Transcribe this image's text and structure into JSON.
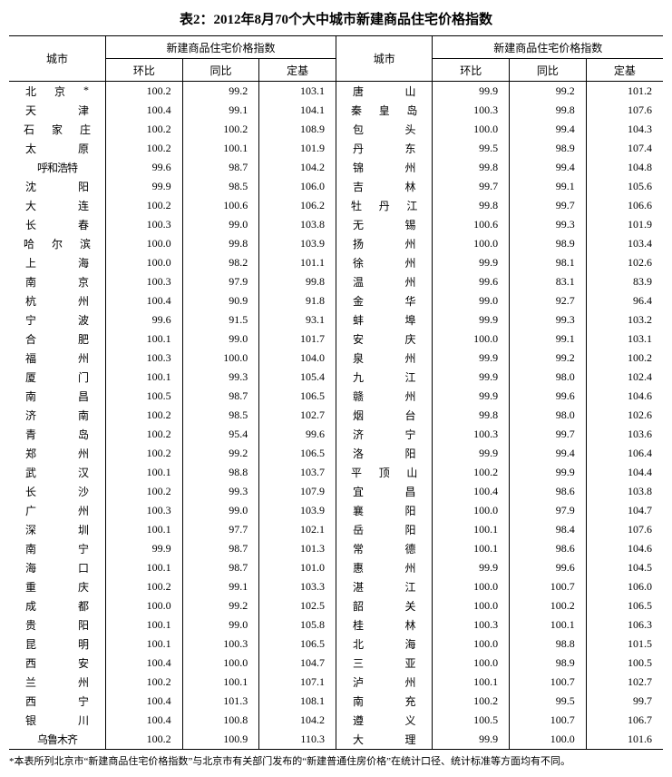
{
  "title": "表2：2012年8月70个大中城市新建商品住宅价格指数",
  "header": {
    "city": "城市",
    "group": "新建商品住宅价格指数",
    "col1": "环比",
    "col2": "同比",
    "col3": "定基"
  },
  "left": [
    {
      "c": "北　京*",
      "v": [
        100.2,
        99.2,
        103.1
      ]
    },
    {
      "c": "天　津",
      "v": [
        100.4,
        99.1,
        104.1
      ]
    },
    {
      "c": "石家庄",
      "v": [
        100.2,
        100.2,
        108.9
      ]
    },
    {
      "c": "太　原",
      "v": [
        100.2,
        100.1,
        101.9
      ]
    },
    {
      "c": "呼和浩特",
      "v": [
        99.6,
        98.7,
        104.2
      ]
    },
    {
      "c": "沈　阳",
      "v": [
        99.9,
        98.5,
        106.0
      ]
    },
    {
      "c": "大　连",
      "v": [
        100.2,
        100.6,
        106.2
      ]
    },
    {
      "c": "长　春",
      "v": [
        100.3,
        99.0,
        103.8
      ]
    },
    {
      "c": "哈尔滨",
      "v": [
        100.0,
        99.8,
        103.9
      ]
    },
    {
      "c": "上　海",
      "v": [
        100.0,
        98.2,
        101.1
      ]
    },
    {
      "c": "南　京",
      "v": [
        100.3,
        97.9,
        99.8
      ]
    },
    {
      "c": "杭　州",
      "v": [
        100.4,
        90.9,
        91.8
      ]
    },
    {
      "c": "宁　波",
      "v": [
        99.6,
        91.5,
        93.1
      ]
    },
    {
      "c": "合　肥",
      "v": [
        100.1,
        99.0,
        101.7
      ]
    },
    {
      "c": "福　州",
      "v": [
        100.3,
        100.0,
        104.0
      ]
    },
    {
      "c": "厦　门",
      "v": [
        100.1,
        99.3,
        105.4
      ]
    },
    {
      "c": "南　昌",
      "v": [
        100.5,
        98.7,
        106.5
      ]
    },
    {
      "c": "济　南",
      "v": [
        100.2,
        98.5,
        102.7
      ]
    },
    {
      "c": "青　岛",
      "v": [
        100.2,
        95.4,
        99.6
      ]
    },
    {
      "c": "郑　州",
      "v": [
        100.2,
        99.2,
        106.5
      ]
    },
    {
      "c": "武　汉",
      "v": [
        100.1,
        98.8,
        103.7
      ]
    },
    {
      "c": "长　沙",
      "v": [
        100.2,
        99.3,
        107.9
      ]
    },
    {
      "c": "广　州",
      "v": [
        100.3,
        99.0,
        103.9
      ]
    },
    {
      "c": "深　圳",
      "v": [
        100.1,
        97.7,
        102.1
      ]
    },
    {
      "c": "南　宁",
      "v": [
        99.9,
        98.7,
        101.3
      ]
    },
    {
      "c": "海　口",
      "v": [
        100.1,
        98.7,
        101.0
      ]
    },
    {
      "c": "重　庆",
      "v": [
        100.2,
        99.1,
        103.3
      ]
    },
    {
      "c": "成　都",
      "v": [
        100.0,
        99.2,
        102.5
      ]
    },
    {
      "c": "贵　阳",
      "v": [
        100.1,
        99.0,
        105.8
      ]
    },
    {
      "c": "昆　明",
      "v": [
        100.1,
        100.3,
        106.5
      ]
    },
    {
      "c": "西　安",
      "v": [
        100.4,
        100.0,
        104.7
      ]
    },
    {
      "c": "兰　州",
      "v": [
        100.2,
        100.1,
        107.1
      ]
    },
    {
      "c": "西　宁",
      "v": [
        100.4,
        101.3,
        108.1
      ]
    },
    {
      "c": "银　川",
      "v": [
        100.4,
        100.8,
        104.2
      ]
    },
    {
      "c": "乌鲁木齐",
      "v": [
        100.2,
        100.9,
        110.3
      ]
    }
  ],
  "right": [
    {
      "c": "唐　山",
      "v": [
        99.9,
        99.2,
        101.2
      ]
    },
    {
      "c": "秦皇岛",
      "v": [
        100.3,
        99.8,
        107.6
      ]
    },
    {
      "c": "包　头",
      "v": [
        100.0,
        99.4,
        104.3
      ]
    },
    {
      "c": "丹　东",
      "v": [
        99.5,
        98.9,
        107.4
      ]
    },
    {
      "c": "锦　州",
      "v": [
        99.8,
        99.4,
        104.8
      ]
    },
    {
      "c": "吉　林",
      "v": [
        99.7,
        99.1,
        105.6
      ]
    },
    {
      "c": "牡丹江",
      "v": [
        99.8,
        99.7,
        106.6
      ]
    },
    {
      "c": "无　锡",
      "v": [
        100.6,
        99.3,
        101.9
      ]
    },
    {
      "c": "扬　州",
      "v": [
        100.0,
        98.9,
        103.4
      ]
    },
    {
      "c": "徐　州",
      "v": [
        99.9,
        98.1,
        102.6
      ]
    },
    {
      "c": "温　州",
      "v": [
        99.6,
        83.1,
        83.9
      ]
    },
    {
      "c": "金　华",
      "v": [
        99.0,
        92.7,
        96.4
      ]
    },
    {
      "c": "蚌　埠",
      "v": [
        99.9,
        99.3,
        103.2
      ]
    },
    {
      "c": "安　庆",
      "v": [
        100.0,
        99.1,
        103.1
      ]
    },
    {
      "c": "泉　州",
      "v": [
        99.9,
        99.2,
        100.2
      ]
    },
    {
      "c": "九　江",
      "v": [
        99.9,
        98.0,
        102.4
      ]
    },
    {
      "c": "赣　州",
      "v": [
        99.9,
        99.6,
        104.6
      ]
    },
    {
      "c": "烟　台",
      "v": [
        99.8,
        98.0,
        102.6
      ]
    },
    {
      "c": "济　宁",
      "v": [
        100.3,
        99.7,
        103.6
      ]
    },
    {
      "c": "洛　阳",
      "v": [
        99.9,
        99.4,
        106.4
      ]
    },
    {
      "c": "平顶山",
      "v": [
        100.2,
        99.9,
        104.4
      ]
    },
    {
      "c": "宜　昌",
      "v": [
        100.4,
        98.6,
        103.8
      ]
    },
    {
      "c": "襄　阳",
      "v": [
        100.0,
        97.9,
        104.7
      ]
    },
    {
      "c": "岳　阳",
      "v": [
        100.1,
        98.4,
        107.6
      ]
    },
    {
      "c": "常　德",
      "v": [
        100.1,
        98.6,
        104.6
      ]
    },
    {
      "c": "惠　州",
      "v": [
        99.9,
        99.6,
        104.5
      ]
    },
    {
      "c": "湛　江",
      "v": [
        100.0,
        100.7,
        106.0
      ]
    },
    {
      "c": "韶　关",
      "v": [
        100.0,
        100.2,
        106.5
      ]
    },
    {
      "c": "桂　林",
      "v": [
        100.3,
        100.1,
        106.3
      ]
    },
    {
      "c": "北　海",
      "v": [
        100.0,
        98.8,
        101.5
      ]
    },
    {
      "c": "三　亚",
      "v": [
        100.0,
        98.9,
        100.5
      ]
    },
    {
      "c": "泸　州",
      "v": [
        100.1,
        100.7,
        102.7
      ]
    },
    {
      "c": "南　充",
      "v": [
        100.2,
        99.5,
        99.7
      ]
    },
    {
      "c": "遵　义",
      "v": [
        100.5,
        100.7,
        106.7
      ]
    },
    {
      "c": "大　理",
      "v": [
        99.9,
        100.0,
        101.6
      ]
    }
  ],
  "footnote": "*本表所列北京市“新建商品住宅价格指数”与北京市有关部门发布的“新建普通住房价格”在统计口径、统计标准等方面均有不同。"
}
